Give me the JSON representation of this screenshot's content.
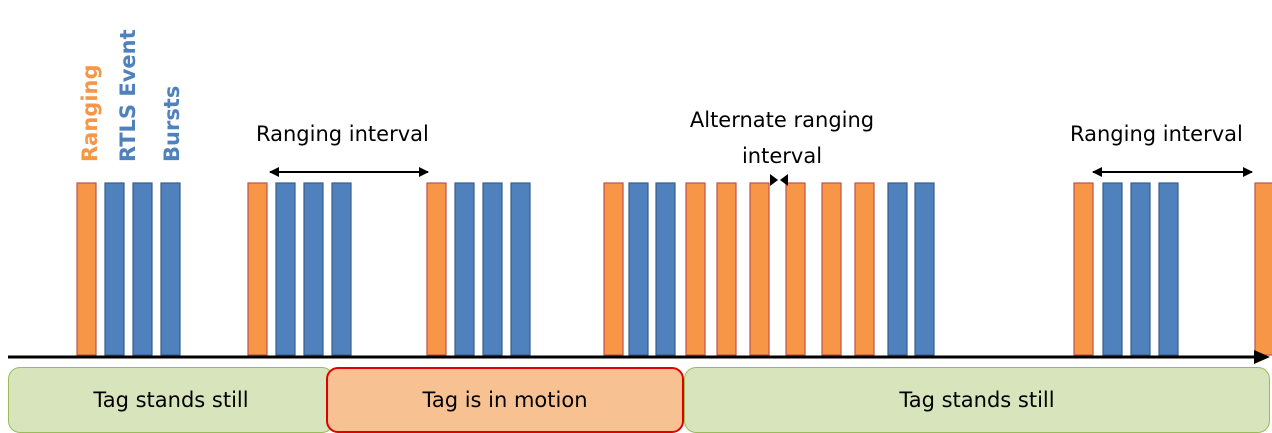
{
  "legend": {
    "ranging": "Ranging",
    "rtls_event": "RTLS Event",
    "bursts": "Bursts"
  },
  "labels": {
    "ranging_interval_left": "Ranging interval",
    "alternate_line1": "Alternate ranging",
    "alternate_line2": "interval",
    "ranging_interval_right": "Ranging interval"
  },
  "phases": {
    "still_1": "Tag stands still",
    "motion": "Tag is in motion",
    "still_2": "Tag stands still"
  },
  "colors": {
    "ranging": "#f79646",
    "ranging_border": "#c0504d",
    "rtls": "#4f81bd",
    "rtls_border": "#385d8a",
    "still_fill": "#d7e4bc",
    "motion_fill": "#f8c191"
  },
  "bursts": [
    "ranging",
    "rtls",
    "rtls",
    "rtls",
    "ranging",
    "rtls",
    "rtls",
    "rtls",
    "ranging",
    "rtls",
    "rtls",
    "rtls",
    "ranging",
    "rtls",
    "rtls",
    "ranging",
    "ranging",
    "ranging",
    "ranging",
    "ranging",
    "ranging",
    "rtls",
    "rtls",
    "ranging",
    "rtls",
    "rtls",
    "rtls",
    "ranging"
  ]
}
